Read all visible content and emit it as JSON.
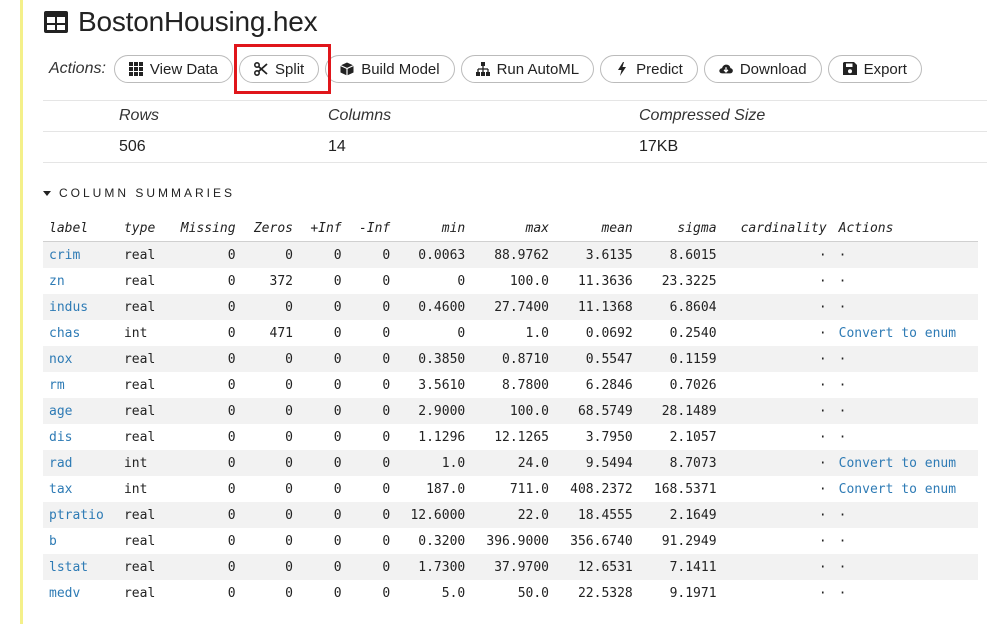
{
  "title": "BostonHousing.hex",
  "actions": {
    "label": "Actions:",
    "buttons": {
      "view_data": "View Data",
      "split": "Split",
      "build_model": "Build Model",
      "run_automl": "Run AutoML",
      "predict": "Predict",
      "download": "Download",
      "export": "Export"
    }
  },
  "stats": {
    "headers": {
      "rows": "Rows",
      "columns": "Columns",
      "size": "Compressed Size"
    },
    "values": {
      "rows": "506",
      "columns": "14",
      "size": "17KB"
    }
  },
  "section_title": "COLUMN SUMMARIES",
  "table": {
    "headers": [
      "label",
      "type",
      "Missing",
      "Zeros",
      "+Inf",
      "-Inf",
      "min",
      "max",
      "mean",
      "sigma",
      "cardinality",
      "Actions"
    ],
    "rows": [
      {
        "label": "crim",
        "type": "real",
        "missing": "0",
        "zeros": "0",
        "pinf": "0",
        "ninf": "0",
        "min": "0.0063",
        "max": "88.9762",
        "mean": "3.6135",
        "sigma": "8.6015",
        "card": "·",
        "action": "·"
      },
      {
        "label": "zn",
        "type": "real",
        "missing": "0",
        "zeros": "372",
        "pinf": "0",
        "ninf": "0",
        "min": "0",
        "max": "100.0",
        "mean": "11.3636",
        "sigma": "23.3225",
        "card": "·",
        "action": "·"
      },
      {
        "label": "indus",
        "type": "real",
        "missing": "0",
        "zeros": "0",
        "pinf": "0",
        "ninf": "0",
        "min": "0.4600",
        "max": "27.7400",
        "mean": "11.1368",
        "sigma": "6.8604",
        "card": "·",
        "action": "·"
      },
      {
        "label": "chas",
        "type": "int",
        "missing": "0",
        "zeros": "471",
        "pinf": "0",
        "ninf": "0",
        "min": "0",
        "max": "1.0",
        "mean": "0.0692",
        "sigma": "0.2540",
        "card": "·",
        "action": "Convert to enum"
      },
      {
        "label": "nox",
        "type": "real",
        "missing": "0",
        "zeros": "0",
        "pinf": "0",
        "ninf": "0",
        "min": "0.3850",
        "max": "0.8710",
        "mean": "0.5547",
        "sigma": "0.1159",
        "card": "·",
        "action": "·"
      },
      {
        "label": "rm",
        "type": "real",
        "missing": "0",
        "zeros": "0",
        "pinf": "0",
        "ninf": "0",
        "min": "3.5610",
        "max": "8.7800",
        "mean": "6.2846",
        "sigma": "0.7026",
        "card": "·",
        "action": "·"
      },
      {
        "label": "age",
        "type": "real",
        "missing": "0",
        "zeros": "0",
        "pinf": "0",
        "ninf": "0",
        "min": "2.9000",
        "max": "100.0",
        "mean": "68.5749",
        "sigma": "28.1489",
        "card": "·",
        "action": "·"
      },
      {
        "label": "dis",
        "type": "real",
        "missing": "0",
        "zeros": "0",
        "pinf": "0",
        "ninf": "0",
        "min": "1.1296",
        "max": "12.1265",
        "mean": "3.7950",
        "sigma": "2.1057",
        "card": "·",
        "action": "·"
      },
      {
        "label": "rad",
        "type": "int",
        "missing": "0",
        "zeros": "0",
        "pinf": "0",
        "ninf": "0",
        "min": "1.0",
        "max": "24.0",
        "mean": "9.5494",
        "sigma": "8.7073",
        "card": "·",
        "action": "Convert to enum"
      },
      {
        "label": "tax",
        "type": "int",
        "missing": "0",
        "zeros": "0",
        "pinf": "0",
        "ninf": "0",
        "min": "187.0",
        "max": "711.0",
        "mean": "408.2372",
        "sigma": "168.5371",
        "card": "·",
        "action": "Convert to enum"
      },
      {
        "label": "ptratio",
        "type": "real",
        "missing": "0",
        "zeros": "0",
        "pinf": "0",
        "ninf": "0",
        "min": "12.6000",
        "max": "22.0",
        "mean": "18.4555",
        "sigma": "2.1649",
        "card": "·",
        "action": "·"
      },
      {
        "label": "b",
        "type": "real",
        "missing": "0",
        "zeros": "0",
        "pinf": "0",
        "ninf": "0",
        "min": "0.3200",
        "max": "396.9000",
        "mean": "356.6740",
        "sigma": "91.2949",
        "card": "·",
        "action": "·"
      },
      {
        "label": "lstat",
        "type": "real",
        "missing": "0",
        "zeros": "0",
        "pinf": "0",
        "ninf": "0",
        "min": "1.7300",
        "max": "37.9700",
        "mean": "12.6531",
        "sigma": "7.1411",
        "card": "·",
        "action": "·"
      },
      {
        "label": "medv",
        "type": "real",
        "missing": "0",
        "zeros": "0",
        "pinf": "0",
        "ninf": "0",
        "min": "5.0",
        "max": "50.0",
        "mean": "22.5328",
        "sigma": "9.1971",
        "card": "·",
        "action": "·"
      }
    ]
  },
  "colors": {
    "link": "#2e7bb5",
    "highlight": "#e0161b",
    "accent_rule": "#f4f08a"
  }
}
